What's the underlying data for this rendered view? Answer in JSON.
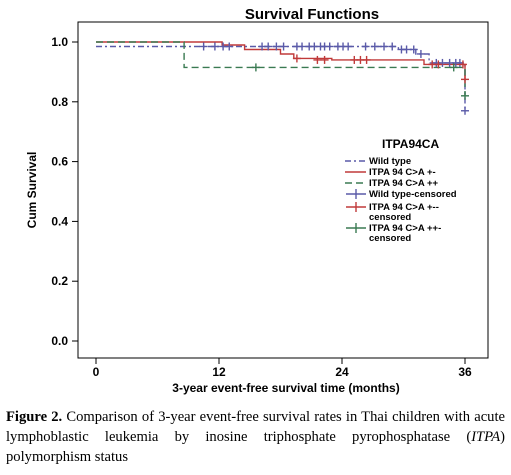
{
  "chart_data": {
    "type": "line",
    "title": "Survival Functions",
    "xlabel": "3-year event-free survival time (months)",
    "ylabel": "Cum Survival",
    "xlim": [
      0,
      36
    ],
    "ylim": [
      0,
      1.0
    ],
    "xticks": [
      0,
      12,
      24,
      36
    ],
    "yticks": [
      0.0,
      0.2,
      0.4,
      0.6,
      0.8,
      1.0
    ],
    "ytick_labels": [
      "0.0",
      "0.2",
      "0.4",
      "0.6",
      "0.8",
      "1.0"
    ],
    "legend": {
      "title": "ITPA94CA",
      "position": "right-center",
      "entries": [
        "Wild type",
        "ITPA 94 C>A +-",
        "ITPA 94 C>A ++",
        "Wild type-censored",
        "ITPA 94 C>A +--censored",
        "ITPA 94 C>A ++-censored"
      ]
    },
    "series": [
      {
        "name": "Wild type",
        "style": "dash-dot",
        "color": "#5a5aa8",
        "steps": [
          [
            0,
            0.985
          ],
          [
            29.5,
            0.985
          ],
          [
            29.5,
            0.975
          ],
          [
            31.2,
            0.975
          ],
          [
            31.2,
            0.96
          ],
          [
            32.5,
            0.96
          ],
          [
            32.5,
            0.93
          ],
          [
            36,
            0.93
          ],
          [
            36,
            0.77
          ]
        ],
        "censored": [
          10.5,
          11.6,
          12.4,
          13.0,
          16.2,
          16.8,
          17.6,
          18.3,
          19.6,
          20.1,
          20.8,
          21.3,
          21.9,
          22.3,
          22.8,
          23.6,
          24.1,
          24.6,
          26.3,
          27.2,
          28.1,
          28.9,
          29.8,
          30.3,
          31.0,
          31.7,
          33.2,
          33.8,
          34.5,
          35.1,
          35.5
        ],
        "censored_y": [
          0.985,
          0.985,
          0.985,
          0.985,
          0.985,
          0.985,
          0.985,
          0.985,
          0.985,
          0.985,
          0.985,
          0.985,
          0.985,
          0.985,
          0.985,
          0.985,
          0.985,
          0.985,
          0.985,
          0.985,
          0.985,
          0.985,
          0.975,
          0.975,
          0.975,
          0.96,
          0.93,
          0.93,
          0.93,
          0.93,
          0.93
        ],
        "censored_end": [
          [
            36,
            0.77
          ]
        ]
      },
      {
        "name": "ITPA 94 C>A +-",
        "style": "solid",
        "color": "#c03a3a",
        "steps": [
          [
            0,
            1.0
          ],
          [
            12.3,
            1.0
          ],
          [
            12.3,
            0.99
          ],
          [
            14.5,
            0.99
          ],
          [
            14.5,
            0.975
          ],
          [
            18.0,
            0.975
          ],
          [
            18.0,
            0.96
          ],
          [
            19.3,
            0.96
          ],
          [
            19.3,
            0.945
          ],
          [
            23.0,
            0.945
          ],
          [
            23.0,
            0.94
          ],
          [
            32.0,
            0.94
          ],
          [
            32.0,
            0.925
          ],
          [
            36,
            0.925
          ],
          [
            36,
            0.875
          ]
        ],
        "censored": [
          19.6,
          21.6,
          22.3,
          25.2,
          25.8,
          26.4,
          32.8,
          33.4,
          35.8
        ],
        "censored_y": [
          0.945,
          0.94,
          0.94,
          0.94,
          0.94,
          0.94,
          0.925,
          0.925,
          0.925
        ],
        "censored_end": [
          [
            36,
            0.875
          ]
        ]
      },
      {
        "name": "ITPA 94 C>A ++",
        "style": "dashed",
        "color": "#3a7a52",
        "steps": [
          [
            0,
            1.0
          ],
          [
            8.6,
            1.0
          ],
          [
            8.6,
            0.915
          ],
          [
            36,
            0.915
          ],
          [
            36,
            0.82
          ]
        ],
        "censored": [
          15.6,
          34.9
        ],
        "censored_y": [
          0.915,
          0.915
        ],
        "censored_end": [
          [
            36,
            0.82
          ]
        ]
      }
    ]
  },
  "caption": {
    "label": "Figure 2.",
    "text_before": " Comparison of 3-year event-free survival rates in Thai children with acute lymphoblastic leukemia by inosine triphosphate pyrophosphatase (",
    "italic": "ITPA",
    "text_after": ") polymorphism status"
  }
}
